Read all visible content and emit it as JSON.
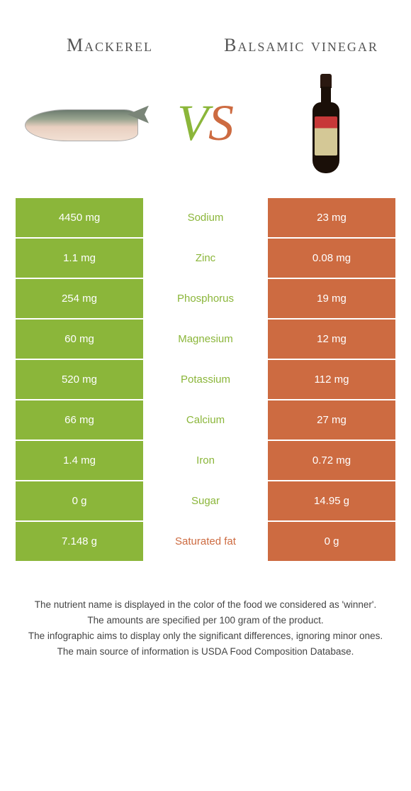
{
  "colors": {
    "left": "#8bb63a",
    "right": "#cd6b41",
    "background": "#ffffff",
    "text": "#444444",
    "cell_text": "#ffffff"
  },
  "foods": {
    "left": "Mackerel",
    "right": "Balsamic vinegar"
  },
  "vs": {
    "v": "V",
    "s": "S"
  },
  "rows": [
    {
      "nutrient": "Sodium",
      "left": "4450 mg",
      "right": "23 mg",
      "winner": "left"
    },
    {
      "nutrient": "Zinc",
      "left": "1.1 mg",
      "right": "0.08 mg",
      "winner": "left"
    },
    {
      "nutrient": "Phosphorus",
      "left": "254 mg",
      "right": "19 mg",
      "winner": "left"
    },
    {
      "nutrient": "Magnesium",
      "left": "60 mg",
      "right": "12 mg",
      "winner": "left"
    },
    {
      "nutrient": "Potassium",
      "left": "520 mg",
      "right": "112 mg",
      "winner": "left"
    },
    {
      "nutrient": "Calcium",
      "left": "66 mg",
      "right": "27 mg",
      "winner": "left"
    },
    {
      "nutrient": "Iron",
      "left": "1.4 mg",
      "right": "0.72 mg",
      "winner": "left"
    },
    {
      "nutrient": "Sugar",
      "left": "0 g",
      "right": "14.95 g",
      "winner": "left"
    },
    {
      "nutrient": "Saturated fat",
      "left": "7.148 g",
      "right": "0 g",
      "winner": "right"
    }
  ],
  "footnotes": [
    "The nutrient name is displayed in the color of the food we considered as 'winner'.",
    "The amounts are specified per 100 gram of the product.",
    "The infographic aims to display only the significant differences, ignoring minor ones.",
    "The main source of information is USDA Food Composition Database."
  ]
}
